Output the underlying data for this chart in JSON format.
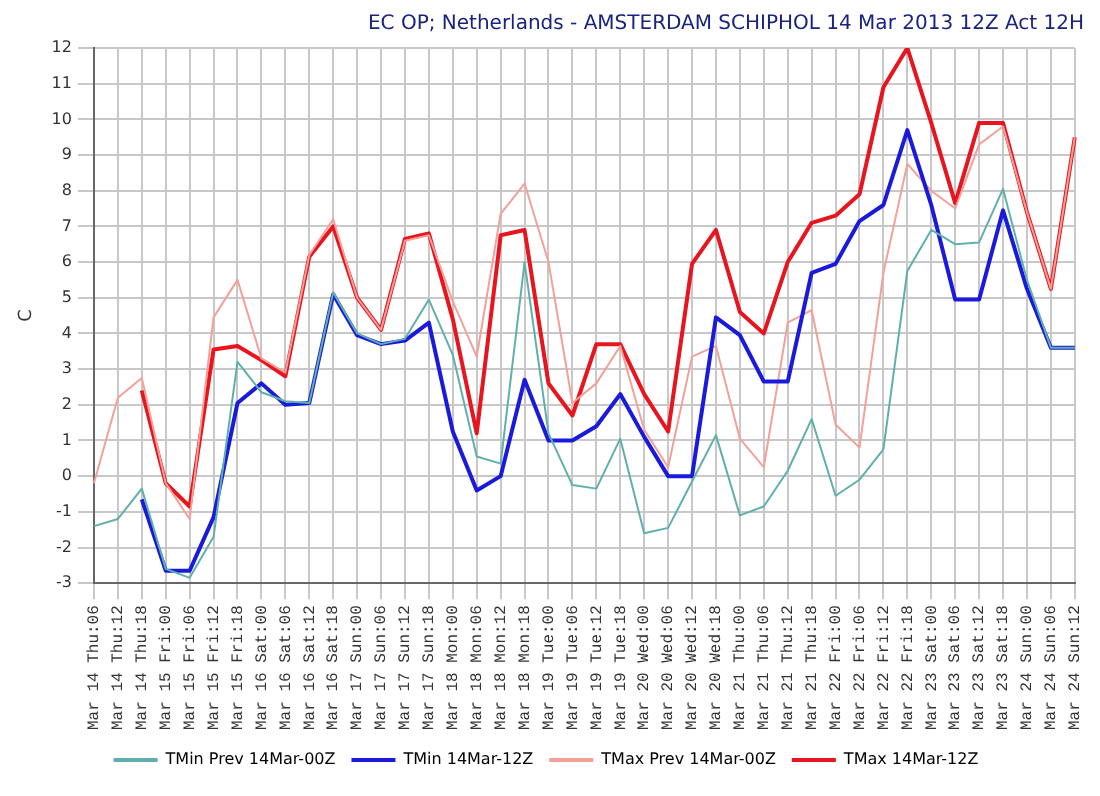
{
  "chart_data": {
    "type": "line",
    "title": "EC OP; Netherlands - AMSTERDAM SCHIPHOL 14 Mar 2013 12Z Act 12H",
    "ylabel": "C",
    "categories": [
      "Mar 14 Thu:06",
      "Mar 14 Thu:12",
      "Mar 14 Thu:18",
      "Mar 15 Fri:00",
      "Mar 15 Fri:06",
      "Mar 15 Fri:12",
      "Mar 15 Fri:18",
      "Mar 16 Sat:00",
      "Mar 16 Sat:06",
      "Mar 16 Sat:12",
      "Mar 16 Sat:18",
      "Mar 17 Sun:00",
      "Mar 17 Sun:06",
      "Mar 17 Sun:12",
      "Mar 17 Sun:18",
      "Mar 18 Mon:00",
      "Mar 18 Mon:06",
      "Mar 18 Mon:12",
      "Mar 18 Mon:18",
      "Mar 19 Tue:00",
      "Mar 19 Tue:06",
      "Mar 19 Tue:12",
      "Mar 19 Tue:18",
      "Mar 20 Wed:00",
      "Mar 20 Wed:06",
      "Mar 20 Wed:12",
      "Mar 20 Wed:18",
      "Mar 21 Thu:00",
      "Mar 21 Thu:06",
      "Mar 21 Thu:12",
      "Mar 21 Thu:18",
      "Mar 22 Fri:00",
      "Mar 22 Fri:06",
      "Mar 22 Fri:12",
      "Mar 22 Fri:18",
      "Mar 23 Sat:00",
      "Mar 23 Sat:06",
      "Mar 23 Sat:12",
      "Mar 23 Sat:18",
      "Mar 24 Sun:00",
      "Mar 24 Sun:06",
      "Mar 24 Sun:12"
    ],
    "series": [
      {
        "name": "TMin Prev 14Mar-00Z",
        "color": "#5fb0ad",
        "values": [
          -1.4,
          -1.2,
          -0.35,
          -2.6,
          -2.85,
          -1.7,
          3.2,
          2.35,
          2.1,
          2.05,
          5.15,
          4.0,
          3.7,
          3.85,
          4.95,
          3.4,
          0.55,
          0.35,
          6.0,
          1.2,
          -0.25,
          -0.35,
          1.05,
          -1.6,
          -1.45,
          -0.15,
          1.15,
          -1.1,
          -0.85,
          0.15,
          1.6,
          -0.55,
          -0.1,
          0.75,
          5.75,
          6.9,
          6.5,
          6.55,
          8.05,
          5.5,
          3.6,
          3.6
        ]
      },
      {
        "name": "TMin 14Mar-12Z",
        "color": "#1a1adc",
        "values": [
          null,
          null,
          -0.65,
          -2.65,
          -2.65,
          -1.15,
          2.05,
          2.6,
          2.0,
          2.05,
          5.1,
          3.95,
          3.7,
          3.8,
          4.3,
          1.25,
          -0.4,
          0.0,
          2.7,
          1.0,
          1.0,
          1.4,
          2.3,
          1.1,
          0.0,
          0.0,
          4.45,
          3.95,
          2.65,
          2.65,
          5.7,
          5.95,
          7.15,
          7.6,
          9.7,
          7.6,
          4.95,
          4.95,
          7.45,
          5.25,
          3.6,
          3.6
        ]
      },
      {
        "name": "TMax Prev 14Mar-00Z",
        "color": "#f4a098",
        "values": [
          -0.2,
          2.2,
          2.75,
          -0.2,
          -1.2,
          4.45,
          5.5,
          3.3,
          2.9,
          6.2,
          7.2,
          5.0,
          4.1,
          6.6,
          6.75,
          4.9,
          3.35,
          7.35,
          8.2,
          6.0,
          2.05,
          2.6,
          3.65,
          1.3,
          0.25,
          3.35,
          3.65,
          1.05,
          0.25,
          4.3,
          4.65,
          1.45,
          0.8,
          5.7,
          8.75,
          8.0,
          7.5,
          9.3,
          9.8,
          7.4,
          5.25,
          9.5
        ]
      },
      {
        "name": "TMax 14Mar-12Z",
        "color": "#e8141e",
        "values": [
          null,
          null,
          2.4,
          -0.2,
          -0.85,
          3.55,
          3.65,
          3.25,
          2.8,
          6.15,
          7.0,
          5.0,
          4.1,
          6.65,
          6.8,
          4.4,
          1.2,
          6.75,
          6.9,
          2.6,
          1.7,
          3.7,
          3.7,
          2.3,
          1.25,
          5.95,
          6.9,
          4.6,
          4.0,
          6.0,
          7.1,
          7.3,
          7.9,
          10.9,
          12.0,
          9.9,
          7.65,
          9.9,
          9.9,
          7.4,
          5.25,
          9.5
        ]
      }
    ],
    "ylim": [
      -3,
      12
    ],
    "yticks": [
      -3,
      -2,
      -1,
      0,
      1,
      2,
      3,
      4,
      5,
      6,
      7,
      8,
      9,
      10,
      11,
      12
    ],
    "grid": true,
    "legend": "bottom",
    "marker": "none",
    "line_style": "solid"
  }
}
